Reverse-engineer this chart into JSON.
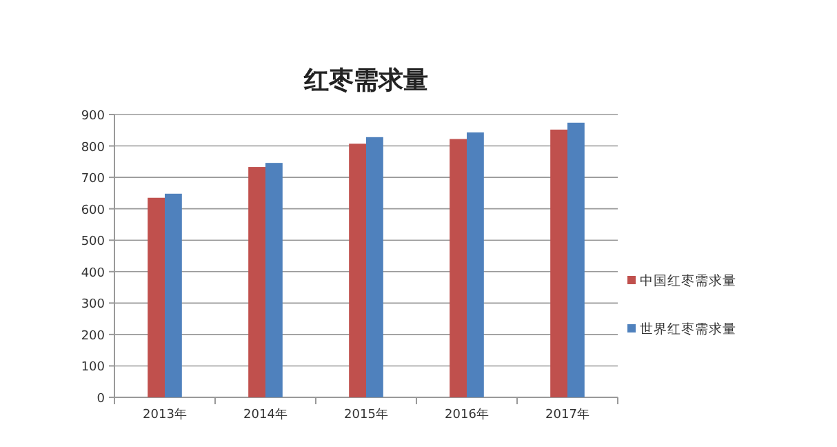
{
  "chart_data": {
    "type": "bar",
    "title": "红枣需求量",
    "categories": [
      "2013年",
      "2014年",
      "2015年",
      "2016年",
      "2017年"
    ],
    "series": [
      {
        "name": "中国红枣需求量",
        "color": "#c0504d",
        "values": [
          635,
          733,
          807,
          822,
          852
        ]
      },
      {
        "name": "世界红枣需求量",
        "color": "#4f81bd",
        "values": [
          648,
          746,
          828,
          843,
          874
        ]
      }
    ],
    "ylim": [
      0,
      900
    ],
    "yticks": [
      0,
      100,
      200,
      300,
      400,
      500,
      600,
      700,
      800,
      900
    ],
    "grid": "y",
    "legend": "right"
  }
}
